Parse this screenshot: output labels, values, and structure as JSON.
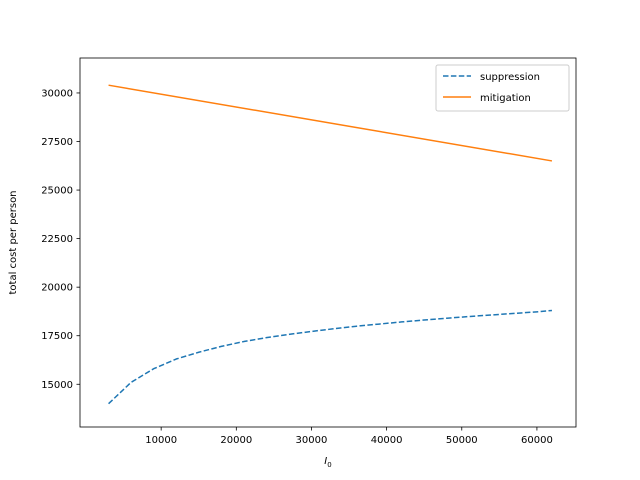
{
  "chart_data": {
    "type": "line",
    "title": "",
    "xlabel": "I",
    "xlabel_subscript": "0",
    "ylabel": "total cost per person",
    "xlim": [
      -800,
      65200
    ],
    "ylim": [
      12800,
      31800
    ],
    "xticks": [
      10000,
      20000,
      30000,
      40000,
      50000,
      60000
    ],
    "xtick_labels": [
      "10000",
      "20000",
      "30000",
      "40000",
      "50000",
      "60000"
    ],
    "yticks": [
      15000,
      17500,
      20000,
      22500,
      25000,
      27500,
      30000
    ],
    "ytick_labels": [
      "15000",
      "17500",
      "20000",
      "22500",
      "25000",
      "27500",
      "30000"
    ],
    "grid": false,
    "legend_position": "top-right",
    "series": [
      {
        "name": "suppression",
        "color": "#1f77b4",
        "style": "dashed",
        "x": [
          3000,
          6000,
          9000,
          12000,
          15000,
          18000,
          21000,
          24000,
          27000,
          30000,
          33000,
          36000,
          39000,
          42000,
          45000,
          48000,
          51000,
          54000,
          57000,
          60000,
          62000
        ],
        "y": [
          14000,
          15100,
          15800,
          16300,
          16650,
          16950,
          17200,
          17400,
          17570,
          17720,
          17860,
          17990,
          18100,
          18210,
          18310,
          18400,
          18490,
          18570,
          18650,
          18730,
          18800
        ]
      },
      {
        "name": "mitigation",
        "color": "#ff7f0e",
        "style": "solid",
        "x": [
          3000,
          62000
        ],
        "y": [
          30400,
          26500
        ]
      }
    ]
  }
}
